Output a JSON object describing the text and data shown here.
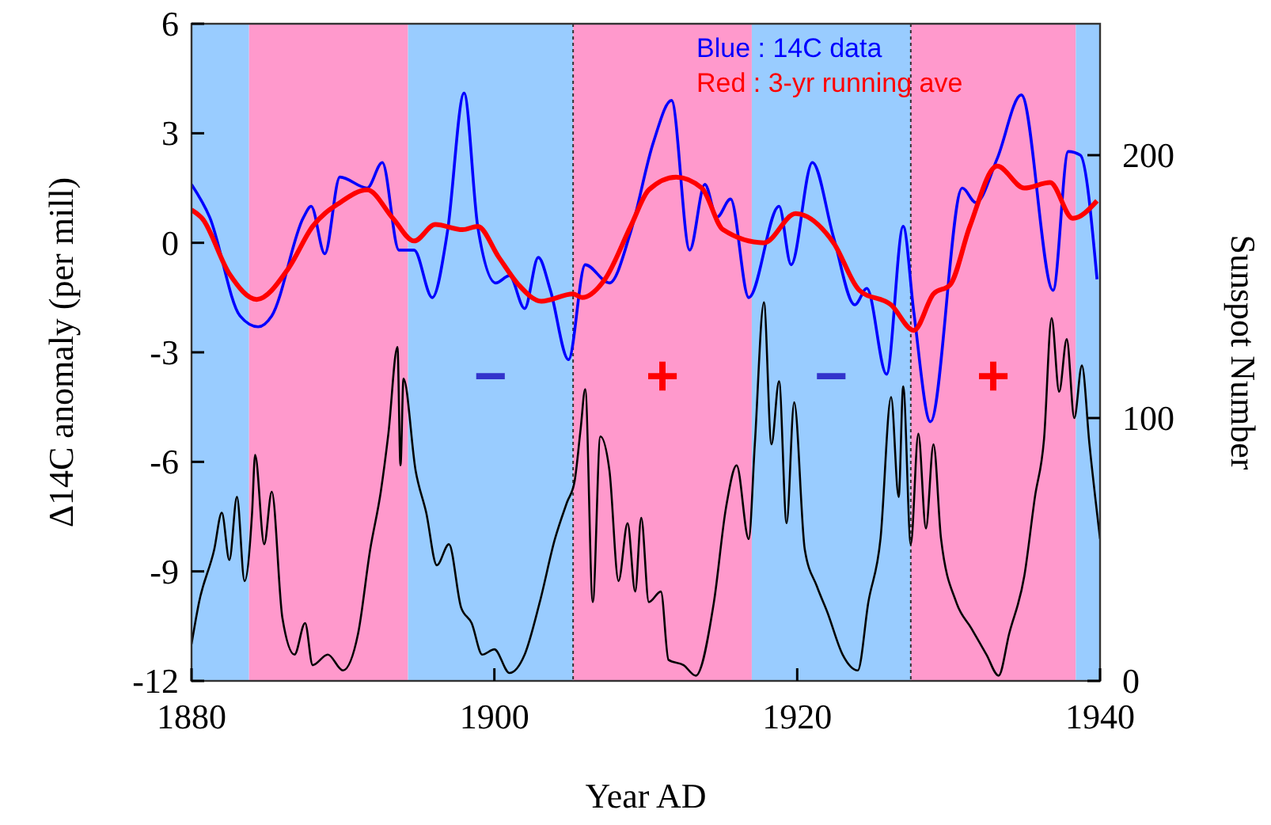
{
  "chart_data": {
    "type": "line",
    "xlabel": "Year AD",
    "ylabel": "Δ14C anomaly (per mill)",
    "y2label": "Sunspot Number",
    "xlim": [
      1880,
      1940
    ],
    "xticks": [
      1880,
      1900,
      1920,
      1940
    ],
    "ylim": [
      -12,
      6
    ],
    "yticks": [
      -12,
      -9,
      -6,
      -3,
      0,
      3,
      6
    ],
    "y2lim": [
      0,
      250
    ],
    "y2ticks": [
      0,
      100,
      200
    ],
    "legend": "top",
    "line_style": "solid",
    "marker": "none",
    "grid": false,
    "bands": [
      {
        "axis": "x",
        "from": 1880,
        "to": 1883.8,
        "color": "#99ccff"
      },
      {
        "axis": "x",
        "from": 1883.8,
        "to": 1894.3,
        "color": "#ff99cc"
      },
      {
        "axis": "x",
        "from": 1894.3,
        "to": 1905.2,
        "color": "#99ccff"
      },
      {
        "axis": "x",
        "from": 1905.2,
        "to": 1917.0,
        "color": "#ff99cc"
      },
      {
        "axis": "x",
        "from": 1917.0,
        "to": 1927.5,
        "color": "#99ccff"
      },
      {
        "axis": "x",
        "from": 1927.5,
        "to": 1938.4,
        "color": "#ff99cc"
      },
      {
        "axis": "x",
        "from": 1938.4,
        "to": 1940,
        "color": "#99ccff"
      }
    ],
    "ref_lines": [
      {
        "axis": "x",
        "value": 1905.2,
        "line_style": "dotted",
        "color": "#333333"
      },
      {
        "axis": "x",
        "value": 1927.5,
        "line_style": "dotted",
        "color": "#333333"
      }
    ],
    "annotations": [
      "−",
      "+",
      "−",
      "+"
    ],
    "series": [
      {
        "name": "Blue : 14C data",
        "color": "#0000ff",
        "x": [
          1880,
          1881.2,
          1883.2,
          1884.4,
          1885.3,
          1887.4,
          1887.9,
          1888.8,
          1889.8,
          1891.6,
          1892.6,
          1893.7,
          1894.7,
          1895.9,
          1896.9,
          1898.0,
          1898.9,
          1900.1,
          1901.0,
          1902.0,
          1902.9,
          1903.7,
          1904.9,
          1906.0,
          1907.6,
          1909.0,
          1910.5,
          1911.7,
          1912.9,
          1913.9,
          1914.7,
          1915.6,
          1916.8,
          1918.8,
          1919.6,
          1921.0,
          1922.4,
          1923.8,
          1924.6,
          1925.9,
          1927.0,
          1927.7,
          1928.8,
          1930.9,
          1931.8,
          1933.2,
          1934.8,
          1936.9,
          1937.9,
          1938.7,
          1939.8
        ],
        "values": [
          1.6,
          0.7,
          -2.0,
          -2.3,
          -2.0,
          0.7,
          1.0,
          -0.3,
          1.8,
          1.5,
          2.2,
          -0.2,
          -0.2,
          -1.5,
          0.3,
          4.1,
          0.45,
          -1.1,
          -0.9,
          -1.8,
          -0.4,
          -1.3,
          -3.2,
          -0.6,
          -1.1,
          0.3,
          2.75,
          3.9,
          -0.2,
          1.6,
          0.7,
          1.2,
          -1.5,
          1.0,
          -0.6,
          2.2,
          0.15,
          -1.7,
          -1.25,
          -3.6,
          0.45,
          -1.9,
          -4.9,
          1.5,
          1.1,
          2.3,
          4.05,
          -1.3,
          2.5,
          2.4,
          -1.0
        ]
      },
      {
        "name": "Red : 3-yr running ave",
        "color": "#ff0000",
        "x": [
          1880,
          1880.7,
          1882.5,
          1884.3,
          1886.4,
          1888.0,
          1889.8,
          1891.6,
          1893.3,
          1894.7,
          1896.1,
          1897.9,
          1898.9,
          1900.3,
          1901.6,
          1903.1,
          1905.2,
          1905.8,
          1907.3,
          1909.0,
          1910.2,
          1912.0,
          1913.7,
          1915.1,
          1917.8,
          1919.9,
          1922.4,
          1924.1,
          1926.2,
          1927.7,
          1929.0,
          1930.1,
          1931.4,
          1933.2,
          1935.0,
          1936.7,
          1938.2,
          1939.8
        ],
        "values": [
          0.9,
          0.67,
          -0.85,
          -1.55,
          -0.7,
          0.45,
          1.1,
          1.45,
          0.67,
          0.05,
          0.5,
          0.36,
          0.45,
          -0.4,
          -1.15,
          -1.6,
          -1.4,
          -1.5,
          -1.0,
          0.45,
          1.45,
          1.8,
          1.5,
          0.36,
          0,
          0.8,
          0,
          -1.3,
          -1.7,
          -2.4,
          -1.4,
          -1.15,
          0.45,
          2.1,
          1.5,
          1.65,
          0.67,
          1.15
        ]
      },
      {
        "color": "#000000",
        "axis": "y2",
        "x": [
          1880,
          1880.5,
          1881.5,
          1882,
          1882.5,
          1883,
          1883.5,
          1884,
          1884.2,
          1884.8,
          1885.3,
          1886,
          1886.8,
          1887.5,
          1888,
          1889,
          1890,
          1891,
          1891.8,
          1892.5,
          1893,
          1893.6,
          1893.8,
          1894,
          1894.8,
          1895.5,
          1896.2,
          1897,
          1897.8,
          1898.5,
          1899.2,
          1900,
          1901,
          1902,
          1903,
          1904,
          1904.8,
          1905.3,
          1905.7,
          1906,
          1906.5,
          1907,
          1907.6,
          1908.2,
          1908.8,
          1909.3,
          1909.7,
          1910.2,
          1911,
          1911.5,
          1912.5,
          1913.3,
          1914.5,
          1915.3,
          1916,
          1916.8,
          1917.2,
          1917.8,
          1918.3,
          1918.8,
          1919.3,
          1919.8,
          1920.5,
          1921.3,
          1922,
          1923,
          1924,
          1924.7,
          1925.5,
          1926.2,
          1926.7,
          1927,
          1927.5,
          1928,
          1928.5,
          1929,
          1929.5,
          1930.5,
          1931.5,
          1932.5,
          1933.3,
          1934,
          1935,
          1935.7,
          1936.3,
          1936.8,
          1937.3,
          1937.8,
          1938.3,
          1938.8,
          1939.3,
          1940
        ],
        "values": [
          14,
          30,
          50,
          64,
          46,
          70,
          38,
          64,
          86,
          52,
          72,
          24,
          10,
          22,
          6,
          10,
          4,
          18,
          50,
          72,
          94,
          127,
          82,
          115,
          80,
          64,
          44,
          52,
          28,
          22,
          10,
          12,
          3,
          10,
          30,
          54,
          68,
          76,
          96,
          111,
          30,
          93,
          80,
          38,
          60,
          34,
          62,
          30,
          34,
          8,
          6,
          2,
          30,
          66,
          82,
          54,
          90,
          144,
          90,
          114,
          60,
          106,
          50,
          36,
          26,
          10,
          4,
          30,
          54,
          108,
          70,
          112,
          52,
          94,
          58,
          90,
          54,
          30,
          20,
          10,
          2,
          18,
          40,
          70,
          92,
          138,
          110,
          130,
          100,
          120,
          90,
          54
        ]
      }
    ]
  }
}
